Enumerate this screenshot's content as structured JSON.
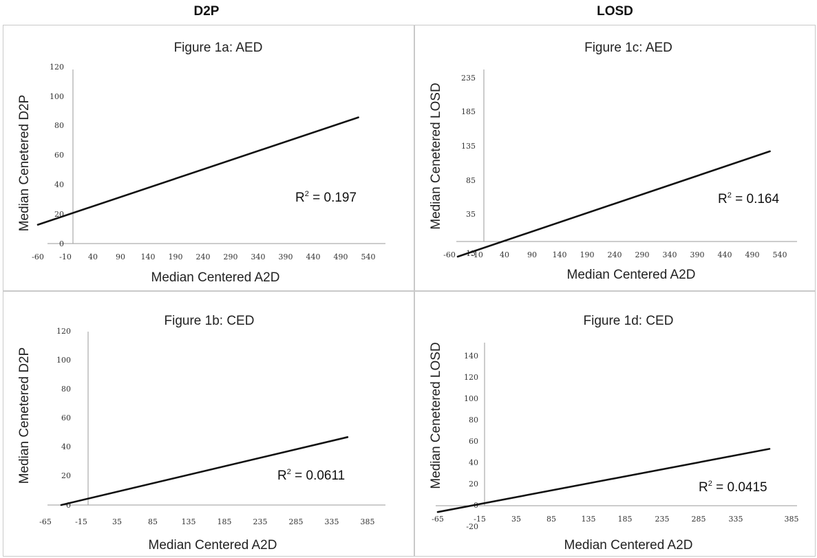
{
  "column_titles": {
    "left": "D2P",
    "right": "LOSD"
  },
  "chart_data": [
    {
      "type": "line",
      "title": "Figure 1a: AED",
      "xlabel": "Median Centered A2D",
      "ylabel": "Median Cenetered D2P",
      "x_ticks": [
        "-60",
        "-10",
        "40",
        "90",
        "140",
        "190",
        "240",
        "290",
        "340",
        "390",
        "440",
        "490",
        "540"
      ],
      "y_ticks": [
        "0",
        "20",
        "40",
        "60",
        "80",
        "100",
        "120"
      ],
      "xlim": [
        -60,
        540
      ],
      "ylim": [
        0,
        120
      ],
      "series": [
        {
          "x": [
            -60,
            522
          ],
          "y": [
            13,
            87
          ]
        }
      ],
      "r2_prefix": "R",
      "r2_sup": "2",
      "r2_value": " = 0.197",
      "grid": false
    },
    {
      "type": "line",
      "title": "Figure 1b: CED",
      "xlabel": "Median Centered A2D",
      "ylabel": "Median Cenetered D2P",
      "x_ticks": [
        "-65",
        "-15",
        "35",
        "85",
        "135",
        "185",
        "235",
        "285",
        "335",
        "385"
      ],
      "y_ticks": [
        "0",
        "20",
        "40",
        "60",
        "80",
        "100",
        "120"
      ],
      "xlim": [
        -65,
        385
      ],
      "ylim": [
        0,
        120
      ],
      "series": [
        {
          "x": [
            -43,
            357
          ],
          "y": [
            0,
            47
          ]
        }
      ],
      "r2_prefix": "R",
      "r2_sup": "2",
      "r2_value": " = 0.0611",
      "grid": false
    },
    {
      "type": "line",
      "title": "Figure 1c: AED",
      "xlabel": "Median Centered A2D",
      "ylabel": "Median Cenetered LOSD",
      "x_ticks": [
        "-60",
        "-10",
        "40",
        "90",
        "140",
        "190",
        "240",
        "290",
        "340",
        "390",
        "440",
        "490",
        "540"
      ],
      "y_ticks": [
        "-15",
        "35",
        "85",
        "135",
        "185",
        "235"
      ],
      "xlim": [
        -60,
        540
      ],
      "ylim": [
        -15,
        255
      ],
      "series": [
        {
          "x": [
            -45,
            522
          ],
          "y": [
            -20,
            132
          ]
        }
      ],
      "r2_prefix": "R",
      "r2_sup": "2",
      "r2_value": " = 0.164",
      "grid": false
    },
    {
      "type": "line",
      "title": "Figure 1d: CED",
      "xlabel": "Median Centered A2D",
      "ylabel": "Median Cenetered LOSD",
      "x_ticks": [
        "-65",
        "-15",
        "35",
        "85",
        "135",
        "185",
        "235",
        "285",
        "335",
        "385"
      ],
      "y_ticks": [
        "-20",
        "0",
        "20",
        "40",
        "60",
        "80",
        "100",
        "120",
        "140"
      ],
      "xlim": [
        -65,
        385
      ],
      "ylim": [
        -20,
        140
      ],
      "series": [
        {
          "x": [
            -65,
            357
          ],
          "y": [
            -6,
            53
          ]
        }
      ],
      "r2_prefix": "R",
      "r2_sup": "2",
      "r2_value": " = 0.0415",
      "grid": false
    }
  ]
}
